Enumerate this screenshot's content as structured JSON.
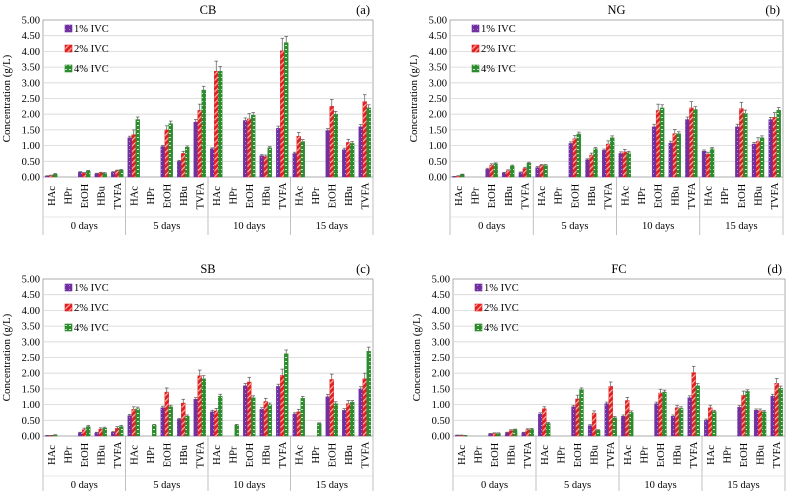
{
  "chart_data": [
    {
      "type": "bar",
      "title": "CB",
      "panel_label": "(a)",
      "ylabel": "Concentration (g/L)",
      "ylim": [
        0,
        5
      ],
      "yticks": [
        "0.00",
        "0.50",
        "1.00",
        "1.50",
        "2.00",
        "2.50",
        "3.00",
        "3.50",
        "4.00",
        "4.50",
        "5.00"
      ],
      "grid": true,
      "legend_position": "top-left",
      "groups": [
        "0 days",
        "5 days",
        "10 days",
        "15 days"
      ],
      "compounds": [
        "HAc",
        "HPr",
        "EtOH",
        "HBu",
        "TVFA"
      ],
      "series": [
        {
          "name": "1% IVC",
          "color": "#7030a0",
          "values": [
            0.03,
            0,
            0.15,
            0.1,
            0.15,
            1.25,
            0,
            0.97,
            0.5,
            1.75,
            0.9,
            0,
            1.8,
            0.68,
            1.55,
            0.75,
            0,
            1.48,
            0.87,
            1.6
          ],
          "errors": [
            0.01,
            0,
            0.02,
            0.02,
            0.02,
            0.05,
            0,
            0.04,
            0.03,
            0.08,
            0.03,
            0,
            0.08,
            0.03,
            0.07,
            0.04,
            0,
            0.06,
            0.05,
            0.07
          ]
        },
        {
          "name": "2% IVC",
          "color": "#e02020",
          "values": [
            0.05,
            0,
            0.12,
            0.13,
            0.2,
            1.35,
            0,
            1.5,
            0.75,
            2.12,
            3.37,
            0,
            1.85,
            0.65,
            4.02,
            1.3,
            0,
            2.25,
            1.1,
            2.4
          ],
          "errors": [
            0.01,
            0,
            0.02,
            0.02,
            0.02,
            0.15,
            0,
            0.13,
            0.07,
            0.2,
            0.32,
            0,
            0.17,
            0.05,
            0.4,
            0.12,
            0,
            0.22,
            0.1,
            0.22
          ]
        },
        {
          "name": "4% IVC",
          "color": "#2e8b2e",
          "values": [
            0.09,
            0,
            0.19,
            0.12,
            0.22,
            1.83,
            0,
            1.7,
            0.95,
            2.77,
            3.37,
            0,
            1.97,
            0.93,
            4.28,
            1.13,
            0,
            2.0,
            1.07,
            2.2
          ],
          "errors": [
            0.02,
            0,
            0.02,
            0.02,
            0.02,
            0.08,
            0,
            0.08,
            0.04,
            0.12,
            0.15,
            0,
            0.08,
            0.04,
            0.2,
            0.06,
            0,
            0.09,
            0.06,
            0.1
          ]
        }
      ]
    },
    {
      "type": "bar",
      "title": "NG",
      "panel_label": "(b)",
      "ylabel": "Concentration (g/L)",
      "ylim": [
        0,
        5
      ],
      "yticks": [
        "0.00",
        "0.50",
        "1.00",
        "1.50",
        "2.00",
        "2.50",
        "3.00",
        "3.50",
        "4.00",
        "4.50",
        "5.00"
      ],
      "grid": true,
      "legend_position": "top-left",
      "groups": [
        "0 days",
        "5 days",
        "10 days",
        "15 days"
      ],
      "compounds": [
        "HAc",
        "HPr",
        "EtOH",
        "HBu",
        "TVFA"
      ],
      "series": [
        {
          "name": "1% IVC",
          "color": "#7030a0",
          "values": [
            0.01,
            0,
            0.25,
            0.13,
            0.14,
            0.3,
            0,
            1.07,
            0.55,
            0.85,
            0.75,
            0,
            1.6,
            1.08,
            1.83,
            0.82,
            0,
            1.6,
            1.05,
            1.83
          ],
          "errors": [
            0.01,
            0,
            0.03,
            0.02,
            0.02,
            0.03,
            0,
            0.05,
            0.03,
            0.04,
            0.05,
            0,
            0.08,
            0.06,
            0.08,
            0.04,
            0,
            0.08,
            0.05,
            0.07
          ]
        },
        {
          "name": "2% IVC",
          "color": "#e02020",
          "values": [
            0.03,
            0,
            0.38,
            0.2,
            0.27,
            0.37,
            0,
            1.22,
            0.7,
            1.05,
            0.8,
            0,
            2.12,
            1.38,
            2.2,
            0.73,
            0,
            2.18,
            1.13,
            1.9
          ],
          "errors": [
            0.01,
            0,
            0.04,
            0.03,
            0.04,
            0.03,
            0,
            0.1,
            0.06,
            0.1,
            0.08,
            0,
            0.2,
            0.13,
            0.2,
            0.06,
            0,
            0.2,
            0.12,
            0.15
          ]
        },
        {
          "name": "4% IVC",
          "color": "#2e8b2e",
          "values": [
            0.08,
            0,
            0.42,
            0.35,
            0.44,
            0.37,
            0,
            1.37,
            0.9,
            1.25,
            0.77,
            0,
            2.2,
            1.38,
            2.15,
            0.9,
            0,
            2.03,
            1.25,
            2.13
          ],
          "errors": [
            0.01,
            0,
            0.03,
            0.03,
            0.03,
            0.03,
            0,
            0.06,
            0.04,
            0.06,
            0.05,
            0,
            0.1,
            0.06,
            0.09,
            0.04,
            0,
            0.1,
            0.06,
            0.08
          ]
        }
      ]
    },
    {
      "type": "bar",
      "title": "SB",
      "panel_label": "(c)",
      "ylabel": "Concentration (g/L)",
      "ylim": [
        0,
        5
      ],
      "yticks": [
        "0.00",
        "0.50",
        "1.00",
        "1.50",
        "2.00",
        "2.50",
        "3.00",
        "3.50",
        "4.00",
        "4.50",
        "5.00"
      ],
      "grid": true,
      "legend_position": "top-left",
      "groups": [
        "0 days",
        "5 days",
        "10 days",
        "15 days"
      ],
      "compounds": [
        "HAc",
        "HPr",
        "EtOH",
        "HBu",
        "TVFA"
      ],
      "series": [
        {
          "name": "1% IVC",
          "color": "#7030a0",
          "values": [
            0.01,
            0,
            0.1,
            0.1,
            0.12,
            0.65,
            0,
            0.9,
            0.53,
            1.17,
            0.77,
            0,
            1.6,
            0.85,
            1.58,
            0.7,
            0,
            1.25,
            0.82,
            1.5
          ],
          "errors": [
            0.01,
            0,
            0.02,
            0.02,
            0.02,
            0.04,
            0,
            0.05,
            0.03,
            0.05,
            0.05,
            0,
            0.07,
            0.05,
            0.07,
            0.04,
            0,
            0.07,
            0.05,
            0.07
          ]
        },
        {
          "name": "2% IVC",
          "color": "#e02020",
          "values": [
            0.01,
            0,
            0.2,
            0.22,
            0.25,
            0.85,
            0,
            1.4,
            1.05,
            1.92,
            0.8,
            0,
            1.72,
            1.1,
            1.93,
            0.77,
            0,
            1.8,
            1.03,
            1.82
          ],
          "errors": [
            0.01,
            0,
            0.05,
            0.04,
            0.05,
            0.08,
            0,
            0.13,
            0.12,
            0.18,
            0.08,
            0,
            0.15,
            0.1,
            0.2,
            0.08,
            0,
            0.17,
            0.1,
            0.18
          ]
        },
        {
          "name": "4% IVC",
          "color": "#2e8b2e",
          "values": [
            0.03,
            0,
            0.3,
            0.25,
            0.3,
            0.87,
            0.35,
            0.93,
            0.63,
            1.82,
            1.27,
            0.35,
            1.22,
            1.0,
            2.62,
            1.2,
            0.4,
            1.03,
            1.08,
            2.7
          ],
          "errors": [
            0.01,
            0,
            0.04,
            0.03,
            0.04,
            0.05,
            0.02,
            0.05,
            0.04,
            0.1,
            0.06,
            0.02,
            0.06,
            0.05,
            0.12,
            0.06,
            0.02,
            0.06,
            0.05,
            0.13
          ]
        }
      ]
    },
    {
      "type": "bar",
      "title": "FC",
      "panel_label": "(d)",
      "ylabel": "Concentration (g/L)",
      "ylim": [
        0,
        5
      ],
      "yticks": [
        "0.00",
        "0.50",
        "1.00",
        "1.50",
        "2.00",
        "2.50",
        "3.00",
        "3.50",
        "4.00",
        "4.50",
        "5.00"
      ],
      "grid": true,
      "legend_position": "top-left",
      "groups": [
        "0 days",
        "5 days",
        "10 days",
        "15 days"
      ],
      "compounds": [
        "HAc",
        "HPr",
        "EtOH",
        "HBu",
        "TVFA"
      ],
      "series": [
        {
          "name": "1% IVC",
          "color": "#7030a0",
          "values": [
            0.02,
            0,
            0.07,
            0.1,
            0.1,
            0.7,
            0,
            0.93,
            0.33,
            1.03,
            0.63,
            0,
            1.03,
            0.63,
            1.22,
            0.5,
            0,
            0.92,
            0.82,
            1.27
          ],
          "errors": [
            0.01,
            0,
            0.01,
            0.02,
            0.02,
            0.04,
            0,
            0.05,
            0.03,
            0.05,
            0.04,
            0,
            0.05,
            0.04,
            0.06,
            0.04,
            0,
            0.05,
            0.04,
            0.06
          ]
        },
        {
          "name": "2% IVC",
          "color": "#e02020",
          "values": [
            0.02,
            0,
            0.08,
            0.17,
            0.2,
            0.87,
            0,
            1.18,
            0.73,
            1.58,
            1.13,
            0,
            1.37,
            0.9,
            2.02,
            0.9,
            0,
            1.3,
            0.8,
            1.68
          ],
          "errors": [
            0.01,
            0,
            0.02,
            0.03,
            0.03,
            0.06,
            0,
            0.12,
            0.07,
            0.14,
            0.1,
            0,
            0.12,
            0.08,
            0.2,
            0.08,
            0,
            0.13,
            0.06,
            0.15
          ]
        },
        {
          "name": "4% IVC",
          "color": "#2e8b2e",
          "values": [
            0.01,
            0,
            0.08,
            0.2,
            0.22,
            0.4,
            0,
            1.48,
            0.18,
            0.58,
            0.75,
            0,
            1.4,
            0.88,
            1.6,
            0.78,
            0,
            1.42,
            0.77,
            1.52
          ],
          "errors": [
            0.01,
            0,
            0.02,
            0.02,
            0.02,
            0.03,
            0,
            0.05,
            0.02,
            0.04,
            0.05,
            0,
            0.06,
            0.05,
            0.07,
            0.04,
            0,
            0.05,
            0.04,
            0.07
          ]
        }
      ]
    }
  ]
}
